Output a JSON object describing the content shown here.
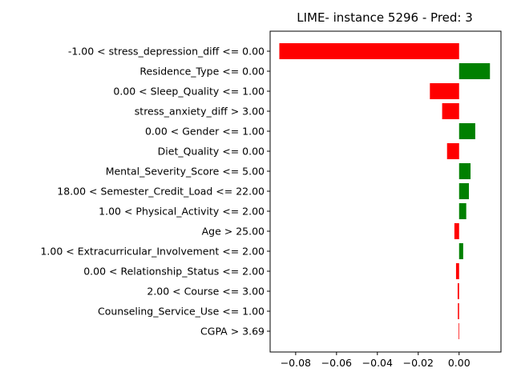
{
  "chart_data": {
    "type": "bar",
    "orientation": "horizontal",
    "title": "LIME- instance 5296 - Pred: 3",
    "xlabel": "",
    "ylabel": "",
    "categories": [
      "-1.00 < stress_depression_diff <= 0.00",
      "Residence_Type <= 0.00",
      "0.00 < Sleep_Quality <= 1.00",
      "stress_anxiety_diff > 3.00",
      "0.00 < Gender <= 1.00",
      "Diet_Quality <= 0.00",
      "Mental_Severity_Score <= 5.00",
      "18.00 < Semester_Credit_Load <= 22.00",
      "1.00 < Physical_Activity <= 2.00",
      "Age > 25.00",
      "1.00 < Extracurricular_Involvement <= 2.00",
      "0.00 < Relationship_Status <= 2.00",
      "2.00 < Course <= 3.00",
      "Counseling_Service_Use <= 1.00",
      "CGPA > 3.69"
    ],
    "values": [
      -0.088,
      0.0151,
      -0.0143,
      -0.0083,
      0.0079,
      -0.0059,
      0.0056,
      0.0048,
      0.0035,
      -0.0023,
      0.002,
      -0.0015,
      -0.0007,
      -0.0006,
      -0.0003
    ],
    "xlim": [
      -0.0925,
      0.0205
    ],
    "xticks": [
      -0.08,
      -0.06,
      -0.04,
      -0.02,
      0.0
    ],
    "xtick_labels": [
      "−0.08",
      "−0.06",
      "−0.04",
      "−0.02",
      "0.00"
    ],
    "positive_color": "#008000",
    "negative_color": "#ff0000",
    "grid": false,
    "legend": "none"
  }
}
